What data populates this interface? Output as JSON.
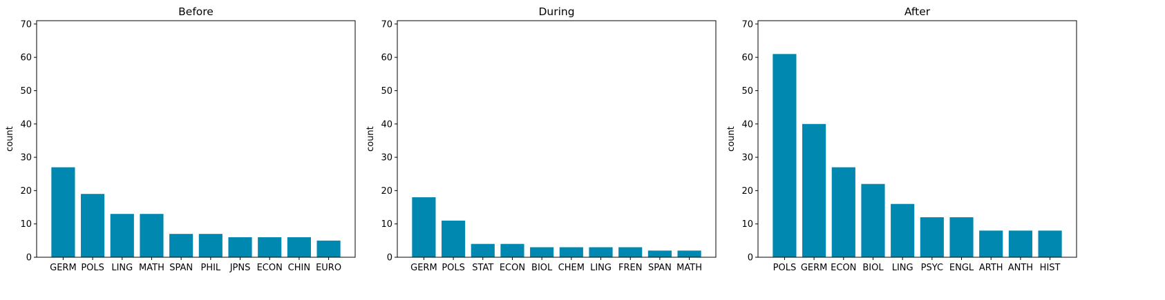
{
  "style": {
    "bar_color": "#0088b0",
    "axis_color": "#000000"
  },
  "chart_data": [
    {
      "type": "bar",
      "title": "Before",
      "ylabel": "count",
      "xlabel": "",
      "ylim": [
        0,
        71
      ],
      "yticks": [
        0,
        10,
        20,
        30,
        40,
        50,
        60,
        70
      ],
      "categories": [
        "GERM",
        "POLS",
        "LING",
        "MATH",
        "SPAN",
        "PHIL",
        "JPNS",
        "ECON",
        "CHIN",
        "EURO"
      ],
      "values": [
        27,
        19,
        13,
        13,
        7,
        7,
        6,
        6,
        6,
        5
      ]
    },
    {
      "type": "bar",
      "title": "During",
      "ylabel": "count",
      "xlabel": "",
      "ylim": [
        0,
        71
      ],
      "yticks": [
        0,
        10,
        20,
        30,
        40,
        50,
        60,
        70
      ],
      "categories": [
        "GERM",
        "POLS",
        "STAT",
        "ECON",
        "BIOL",
        "CHEM",
        "LING",
        "FREN",
        "SPAN",
        "MATH"
      ],
      "values": [
        18,
        11,
        4,
        4,
        3,
        3,
        3,
        3,
        2,
        2
      ]
    },
    {
      "type": "bar",
      "title": "After",
      "ylabel": "count",
      "xlabel": "",
      "ylim": [
        0,
        71
      ],
      "yticks": [
        0,
        10,
        20,
        30,
        40,
        50,
        60,
        70
      ],
      "categories": [
        "POLS",
        "GERM",
        "ECON",
        "BIOL",
        "LING",
        "PSYC",
        "ENGL",
        "ARTH",
        "ANTH",
        "HIST"
      ],
      "values": [
        61,
        40,
        27,
        22,
        16,
        12,
        12,
        8,
        8,
        8
      ]
    }
  ]
}
